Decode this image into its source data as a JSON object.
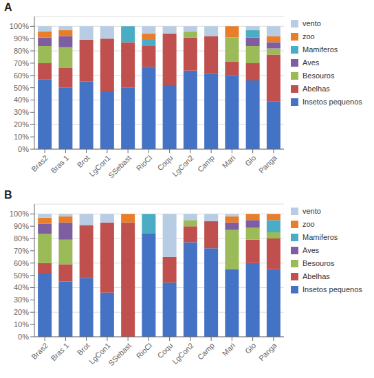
{
  "chart_data": [
    {
      "type": "bar",
      "title": "A",
      "stacked": true,
      "grid": true,
      "legend": "right",
      "categories": [
        "Bras2",
        "Bras 1",
        "Brot",
        "LgCon1",
        "SSebast",
        "RioCl",
        "Coqu",
        "LgCon2",
        "Camp",
        "Mari",
        "Glo",
        "Panga"
      ],
      "series": [
        {
          "name": "Insetos pequenos",
          "color": "#4472C4",
          "values": [
            0.57,
            0.5,
            0.55,
            0.47,
            0.5,
            0.67,
            0.52,
            0.64,
            0.62,
            0.6,
            0.56,
            0.39
          ]
        },
        {
          "name": "Abelhas",
          "color": "#C0504D",
          "values": [
            0.13,
            0.16,
            0.34,
            0.43,
            0.37,
            0.17,
            0.42,
            0.27,
            0.3,
            0.11,
            0.14,
            0.38
          ]
        },
        {
          "name": "Besouros",
          "color": "#9BBB59",
          "values": [
            0.14,
            0.17,
            0,
            0,
            0,
            0,
            0,
            0.05,
            0,
            0.2,
            0.14,
            0.05
          ]
        },
        {
          "name": "Aves",
          "color": "#7E5EA1",
          "values": [
            0.07,
            0.09,
            0,
            0,
            0,
            0,
            0,
            0,
            0,
            0,
            0.07,
            0.05
          ]
        },
        {
          "name": "Mamiferos",
          "color": "#4BACC6",
          "values": [
            0,
            0,
            0,
            0,
            0.13,
            0.05,
            0,
            0,
            0,
            0,
            0.06,
            0
          ]
        },
        {
          "name": "zoo",
          "color": "#E87D2A",
          "values": [
            0.05,
            0.05,
            0,
            0,
            0,
            0.05,
            0,
            0,
            0,
            0.09,
            0,
            0.05
          ]
        },
        {
          "name": "vento",
          "color": "#B8CCE4",
          "values": [
            0.04,
            0.03,
            0.11,
            0.1,
            0,
            0.06,
            0.06,
            0.04,
            0.08,
            0,
            0.03,
            0.08
          ]
        }
      ],
      "ylim": [
        0,
        1.08
      ],
      "yticks": [
        {
          "value": 0,
          "label": "0%"
        },
        {
          "value": 0.1,
          "label": "10%"
        },
        {
          "value": 0.2,
          "label": "20%"
        },
        {
          "value": 0.3,
          "label": "30%"
        },
        {
          "value": 0.4,
          "label": "40%"
        },
        {
          "value": 0.5,
          "label": "50%"
        },
        {
          "value": 0.6,
          "label": "60%"
        },
        {
          "value": 0.7,
          "label": "70%"
        },
        {
          "value": 0.8,
          "label": "80%"
        },
        {
          "value": 0.9,
          "label": "90%"
        },
        {
          "value": 1.0,
          "label": "100%"
        }
      ]
    },
    {
      "type": "bar",
      "title": "B",
      "stacked": true,
      "grid": true,
      "legend": "right",
      "categories": [
        "Bras2",
        "Bras 1",
        "Brot",
        "LgCon1",
        "SSebast",
        "RioCl",
        "Coqu",
        "LgCon2",
        "Camp",
        "Mari",
        "Glo",
        "Panga"
      ],
      "series": [
        {
          "name": "Insetos pequenos",
          "color": "#4472C4",
          "values": [
            0.52,
            0.45,
            0.48,
            0.36,
            0,
            0.84,
            0.44,
            0.77,
            0.72,
            0.55,
            0.6,
            0.55
          ]
        },
        {
          "name": "Abelhas",
          "color": "#C0504D",
          "values": [
            0.08,
            0.14,
            0.43,
            0.57,
            0.93,
            0,
            0.21,
            0.13,
            0.22,
            0,
            0.19,
            0.25
          ]
        },
        {
          "name": "Besouros",
          "color": "#9BBB59",
          "values": [
            0.24,
            0.2,
            0,
            0,
            0,
            0,
            0,
            0.05,
            0,
            0.32,
            0.1,
            0.05
          ]
        },
        {
          "name": "Aves",
          "color": "#7E5EA1",
          "values": [
            0.08,
            0.14,
            0,
            0,
            0,
            0,
            0,
            0,
            0,
            0.06,
            0.06,
            0
          ]
        },
        {
          "name": "Mamiferos",
          "color": "#4BACC6",
          "values": [
            0,
            0,
            0,
            0,
            0,
            0.16,
            0,
            0,
            0,
            0,
            0,
            0.1
          ]
        },
        {
          "name": "zoo",
          "color": "#E87D2A",
          "values": [
            0.05,
            0.05,
            0,
            0,
            0.07,
            0,
            0,
            0,
            0,
            0.05,
            0.05,
            0.05
          ]
        },
        {
          "name": "vento",
          "color": "#B8CCE4",
          "values": [
            0.03,
            0.02,
            0.09,
            0.07,
            0,
            0,
            0.35,
            0.05,
            0.06,
            0.02,
            0,
            0
          ]
        }
      ],
      "ylim": [
        0,
        1.08
      ],
      "yticks": [
        {
          "value": 0,
          "label": "0%"
        },
        {
          "value": 0.1,
          "label": "10%"
        },
        {
          "value": 0.2,
          "label": "20%"
        },
        {
          "value": 0.3,
          "label": "30%"
        },
        {
          "value": 0.4,
          "label": "40%"
        },
        {
          "value": 0.5,
          "label": "50%"
        },
        {
          "value": 0.6,
          "label": "60%"
        },
        {
          "value": 0.7,
          "label": "70%"
        },
        {
          "value": 0.8,
          "label": "80%"
        },
        {
          "value": 0.9,
          "label": "90%"
        },
        {
          "value": 1.0,
          "label": "100%"
        }
      ]
    }
  ]
}
